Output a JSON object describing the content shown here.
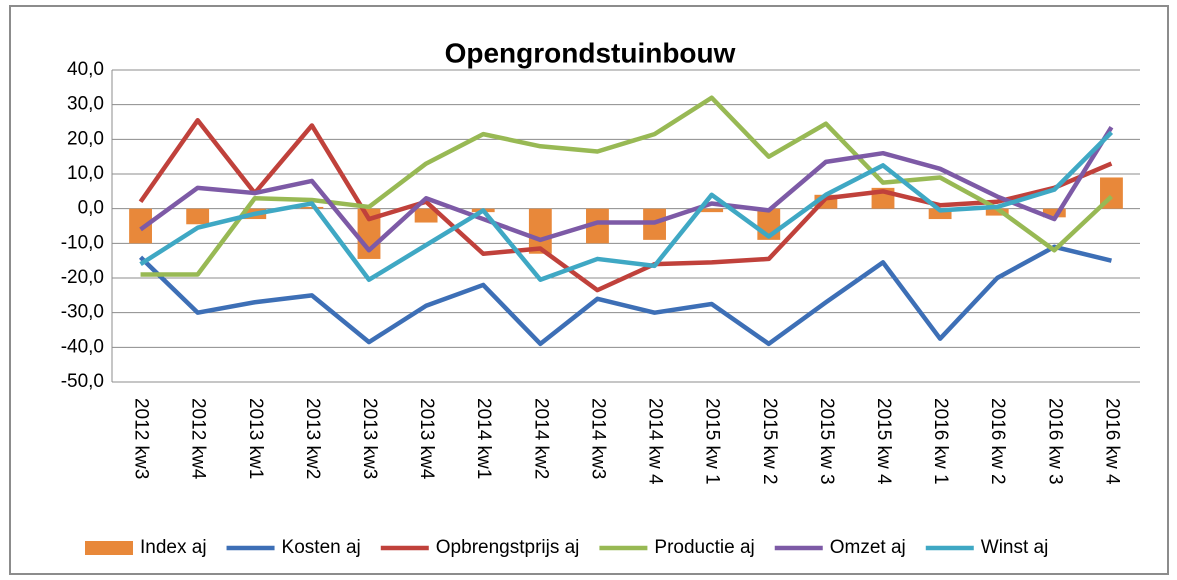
{
  "chart_data": {
    "type": "combo",
    "title": "Opengrondstuinbouw",
    "categories": [
      "2012 kw3",
      "2012 kw4",
      "2013 kw1",
      "2013 kw2",
      "2013 kw3",
      "2013 kw4",
      "2014 kw1",
      "2014 kw2",
      "2014 kw3",
      "2014 kw 4",
      "2015 kw 1",
      "2015 kw 2",
      "2015 kw 3",
      "2015 kw 4",
      "2016 kw 1",
      "2016 kw 2",
      "2016 kw 3",
      "2016 kw 4"
    ],
    "series": [
      {
        "name": "Index aj",
        "type": "bar",
        "color": "#e8883a",
        "values": [
          -10,
          -4.5,
          -3,
          0.5,
          -14.5,
          -4,
          -1,
          -13,
          -10,
          -9,
          -1,
          -9,
          4,
          6,
          -3,
          -2,
          -2.5,
          9
        ]
      },
      {
        "name": "Kosten aj",
        "type": "line",
        "color": "#3d6fb6",
        "values": [
          -14,
          -30,
          -27,
          -25,
          -38.5,
          -28,
          -22,
          -39,
          -26,
          -30,
          -27.5,
          -39,
          -27,
          -15.5,
          -37.5,
          -20,
          -11,
          -15
        ]
      },
      {
        "name": "Opbrengstprijs aj",
        "type": "line",
        "color": "#c0413b",
        "values": [
          2,
          25.5,
          4.5,
          24,
          -3,
          2,
          -13,
          -11.5,
          -23.5,
          -16,
          -15.5,
          -14.5,
          3,
          5,
          1,
          2,
          6,
          13
        ]
      },
      {
        "name": "Productie aj",
        "type": "line",
        "color": "#98b954",
        "values": [
          -19,
          -19,
          3,
          2.5,
          0.5,
          13,
          21.5,
          18,
          16.5,
          21.5,
          32,
          15,
          24.5,
          7.5,
          9,
          0,
          -12,
          3.5
        ]
      },
      {
        "name": "Omzet aj",
        "type": "line",
        "color": "#7d5aa6",
        "values": [
          -6,
          6,
          4.5,
          8,
          -12,
          3,
          -3,
          -9,
          -4,
          -4,
          1.5,
          -0.5,
          13.5,
          16,
          11.5,
          3.5,
          -3,
          23.5
        ]
      },
      {
        "name": "Winst aj",
        "type": "line",
        "color": "#3fa8c4",
        "values": [
          -16,
          -5.5,
          -1.5,
          1.5,
          -20.5,
          -10.5,
          -0.5,
          -20.5,
          -14.5,
          -16.5,
          4,
          -8,
          4,
          12.5,
          -0.5,
          0.5,
          5.5,
          22
        ]
      }
    ],
    "ylim": [
      -50,
      40
    ],
    "yticks": [
      {
        "value": -50,
        "label": "-50,0"
      },
      {
        "value": -40,
        "label": "-40,0"
      },
      {
        "value": -30,
        "label": "-30,0"
      },
      {
        "value": -20,
        "label": "-20,0"
      },
      {
        "value": -10,
        "label": "-10,0"
      },
      {
        "value": 0,
        "label": "0,0"
      },
      {
        "value": 10,
        "label": "10,0"
      },
      {
        "value": 20,
        "label": "20,0"
      },
      {
        "value": 30,
        "label": "30,0"
      },
      {
        "value": 40,
        "label": "40,0"
      }
    ],
    "grid": true,
    "legend": "bottom"
  }
}
